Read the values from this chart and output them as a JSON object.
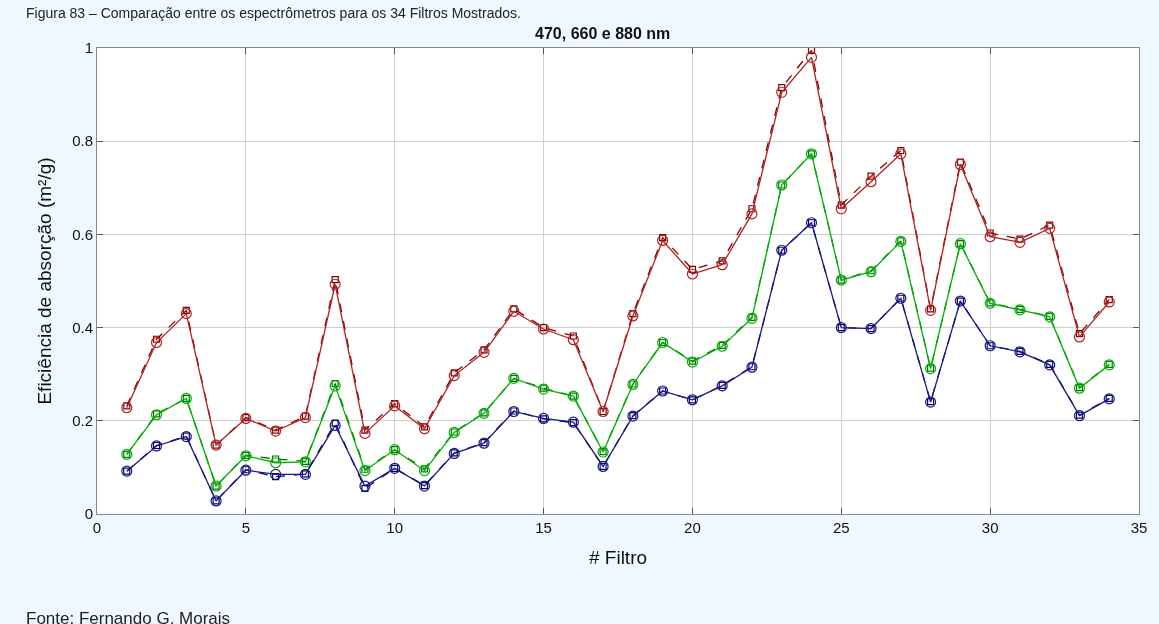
{
  "chart_data": {
    "type": "line",
    "title": "470, 660 e 880 nm",
    "xlabel": "# Filtro",
    "ylabel": "Eficiência de absorção (m²/g)",
    "annotations": [
      "Figura 83 – Comparação entre os espectrômetros para os 34 Filtros Mostrados.",
      "Fonte: Fernando G. Morais"
    ],
    "x": [
      1,
      2,
      3,
      4,
      5,
      6,
      7,
      8,
      9,
      10,
      11,
      12,
      13,
      14,
      15,
      16,
      17,
      18,
      19,
      20,
      21,
      22,
      23,
      24,
      25,
      26,
      27,
      28,
      29,
      30,
      31,
      32,
      33,
      34
    ],
    "series": [
      {
        "color": "#b22222",
        "marker": "circle",
        "line_style": "solid",
        "values": [
          0.228,
          0.368,
          0.43,
          0.148,
          0.205,
          0.178,
          0.207,
          0.493,
          0.173,
          0.232,
          0.183,
          0.297,
          0.347,
          0.435,
          0.397,
          0.374,
          0.22,
          0.425,
          0.587,
          0.515,
          0.535,
          0.644,
          0.905,
          0.98,
          0.655,
          0.713,
          0.773,
          0.437,
          0.75,
          0.595,
          0.583,
          0.613,
          0.38,
          0.455
        ]
      },
      {
        "color": "#800000",
        "marker": "square",
        "line_style": "dashed",
        "values": [
          0.232,
          0.375,
          0.437,
          0.148,
          0.207,
          0.18,
          0.21,
          0.503,
          0.18,
          0.237,
          0.187,
          0.303,
          0.352,
          0.44,
          0.4,
          0.382,
          0.22,
          0.43,
          0.593,
          0.525,
          0.543,
          0.655,
          0.915,
          0.995,
          0.663,
          0.725,
          0.78,
          0.44,
          0.755,
          0.603,
          0.59,
          0.62,
          0.387,
          0.46
        ]
      },
      {
        "color": "#00b000",
        "marker": "circle",
        "line_style": "solid",
        "values": [
          0.128,
          0.213,
          0.248,
          0.06,
          0.125,
          0.11,
          0.112,
          0.275,
          0.093,
          0.138,
          0.093,
          0.175,
          0.216,
          0.291,
          0.268,
          0.253,
          0.133,
          0.278,
          0.368,
          0.326,
          0.36,
          0.42,
          0.706,
          0.773,
          0.502,
          0.52,
          0.585,
          0.312,
          0.58,
          0.452,
          0.438,
          0.423,
          0.27,
          0.32
        ]
      },
      {
        "color": "#007800",
        "marker": "square",
        "line_style": "dashed",
        "values": [
          0.128,
          0.215,
          0.248,
          0.06,
          0.126,
          0.118,
          0.113,
          0.28,
          0.096,
          0.138,
          0.097,
          0.176,
          0.217,
          0.291,
          0.27,
          0.253,
          0.134,
          0.279,
          0.368,
          0.328,
          0.362,
          0.422,
          0.706,
          0.773,
          0.502,
          0.522,
          0.586,
          0.313,
          0.58,
          0.453,
          0.439,
          0.424,
          0.271,
          0.321
        ]
      },
      {
        "color": "#1a1a80",
        "marker": "circle",
        "line_style": "solid",
        "values": [
          0.092,
          0.146,
          0.166,
          0.028,
          0.094,
          0.085,
          0.085,
          0.19,
          0.06,
          0.098,
          0.06,
          0.13,
          0.152,
          0.22,
          0.205,
          0.197,
          0.102,
          0.21,
          0.264,
          0.245,
          0.275,
          0.315,
          0.566,
          0.625,
          0.4,
          0.398,
          0.463,
          0.24,
          0.457,
          0.361,
          0.348,
          0.32,
          0.211,
          0.247
        ]
      },
      {
        "color": "#000070",
        "marker": "square",
        "line_style": "dashed",
        "values": [
          0.092,
          0.147,
          0.167,
          0.028,
          0.095,
          0.08,
          0.086,
          0.195,
          0.055,
          0.098,
          0.061,
          0.131,
          0.153,
          0.221,
          0.204,
          0.196,
          0.102,
          0.211,
          0.264,
          0.245,
          0.276,
          0.316,
          0.566,
          0.625,
          0.4,
          0.398,
          0.463,
          0.241,
          0.457,
          0.361,
          0.349,
          0.321,
          0.212,
          0.248
        ]
      }
    ],
    "xlim": [
      0,
      35
    ],
    "xticks": [
      0,
      5,
      10,
      15,
      20,
      25,
      30,
      35
    ],
    "ylim": [
      0,
      1
    ],
    "yticks": [
      0,
      0.2,
      0.4,
      0.6,
      0.8,
      1
    ],
    "grid": true
  }
}
